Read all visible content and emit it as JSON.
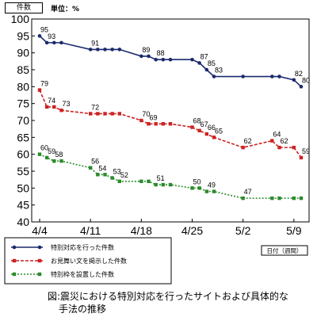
{
  "header": {
    "unit_box": "件数",
    "unit_text": "単位：%"
  },
  "chart_data": {
    "type": "line",
    "ylim": [
      40,
      100
    ],
    "yticks": [
      40,
      45,
      50,
      55,
      60,
      65,
      70,
      75,
      80,
      85,
      90,
      95,
      100
    ],
    "xticks": [
      {
        "label": "4/4",
        "day": 0
      },
      {
        "label": "4/11",
        "day": 7
      },
      {
        "label": "4/18",
        "day": 14
      },
      {
        "label": "4/25",
        "day": 21
      },
      {
        "label": "5/2",
        "day": 28
      },
      {
        "label": "5/9",
        "day": 35
      }
    ],
    "xlim_day": [
      0,
      37
    ],
    "x_axis_note": "日付（週間）",
    "series": [
      {
        "name": "特別対応を行った件数",
        "color": "#1a2a6c",
        "style": "solid",
        "marker": "circle",
        "points": [
          {
            "day": 0,
            "value": 95,
            "label": "95"
          },
          {
            "day": 1,
            "value": 93,
            "label": "93"
          },
          {
            "day": 2,
            "value": 93
          },
          {
            "day": 3,
            "value": 93
          },
          {
            "day": 7,
            "value": 91,
            "label": "91"
          },
          {
            "day": 8,
            "value": 91
          },
          {
            "day": 9,
            "value": 91
          },
          {
            "day": 10,
            "value": 91
          },
          {
            "day": 11,
            "value": 91
          },
          {
            "day": 14,
            "value": 89,
            "label": "89"
          },
          {
            "day": 15,
            "value": 89
          },
          {
            "day": 16,
            "value": 88,
            "label": "88"
          },
          {
            "day": 17,
            "value": 88
          },
          {
            "day": 18,
            "value": 88
          },
          {
            "day": 21,
            "value": 88
          },
          {
            "day": 22,
            "value": 87,
            "label": "87"
          },
          {
            "day": 23,
            "value": 85,
            "label": "85"
          },
          {
            "day": 24,
            "value": 83,
            "label": "83"
          },
          {
            "day": 28,
            "value": 83
          },
          {
            "day": 32,
            "value": 83
          },
          {
            "day": 33,
            "value": 83
          },
          {
            "day": 35,
            "value": 82,
            "label": "82"
          },
          {
            "day": 36,
            "value": 80,
            "label": "80"
          }
        ]
      },
      {
        "name": "お見舞い文を掲示した件数",
        "color": "#cc2222",
        "style": "dashed",
        "marker": "square",
        "points": [
          {
            "day": 0,
            "value": 79,
            "label": "79"
          },
          {
            "day": 1,
            "value": 74,
            "label": "74"
          },
          {
            "day": 2,
            "value": 74
          },
          {
            "day": 3,
            "value": 73,
            "label": "73"
          },
          {
            "day": 7,
            "value": 72,
            "label": "72"
          },
          {
            "day": 8,
            "value": 72
          },
          {
            "day": 9,
            "value": 72
          },
          {
            "day": 10,
            "value": 72
          },
          {
            "day": 11,
            "value": 72
          },
          {
            "day": 14,
            "value": 70,
            "label": "70"
          },
          {
            "day": 15,
            "value": 69,
            "label": "69"
          },
          {
            "day": 16,
            "value": 69
          },
          {
            "day": 17,
            "value": 69
          },
          {
            "day": 18,
            "value": 69
          },
          {
            "day": 21,
            "value": 68,
            "label": "68"
          },
          {
            "day": 22,
            "value": 67,
            "label": "67"
          },
          {
            "day": 23,
            "value": 66,
            "label": "66"
          },
          {
            "day": 24,
            "value": 65,
            "label": "65"
          },
          {
            "day": 28,
            "value": 62,
            "label": "62"
          },
          {
            "day": 32,
            "value": 64,
            "label": "64"
          },
          {
            "day": 33,
            "value": 62,
            "label": "62"
          },
          {
            "day": 35,
            "value": 62
          },
          {
            "day": 36,
            "value": 59,
            "label": "59"
          }
        ]
      },
      {
        "name": "特別枠を設置した件数",
        "color": "#2a8a2a",
        "style": "dotted",
        "marker": "square",
        "points": [
          {
            "day": 0,
            "value": 60,
            "label": "60"
          },
          {
            "day": 1,
            "value": 59,
            "label": "59"
          },
          {
            "day": 2,
            "value": 58,
            "label": "58"
          },
          {
            "day": 3,
            "value": 58
          },
          {
            "day": 7,
            "value": 56,
            "label": "56"
          },
          {
            "day": 8,
            "value": 54,
            "label": "54"
          },
          {
            "day": 9,
            "value": 54
          },
          {
            "day": 10,
            "value": 53,
            "label": "53"
          },
          {
            "day": 11,
            "value": 52,
            "label": "52"
          },
          {
            "day": 14,
            "value": 52
          },
          {
            "day": 15,
            "value": 52
          },
          {
            "day": 16,
            "value": 51,
            "label": "51"
          },
          {
            "day": 17,
            "value": 51
          },
          {
            "day": 18,
            "value": 51
          },
          {
            "day": 21,
            "value": 50,
            "label": "50"
          },
          {
            "day": 22,
            "value": 50
          },
          {
            "day": 23,
            "value": 49,
            "label": "49"
          },
          {
            "day": 24,
            "value": 49
          },
          {
            "day": 28,
            "value": 47,
            "label": "47"
          },
          {
            "day": 32,
            "value": 47
          },
          {
            "day": 33,
            "value": 47
          },
          {
            "day": 35,
            "value": 47
          },
          {
            "day": 36,
            "value": 47
          }
        ]
      }
    ],
    "legend_placement": "bottom-left"
  },
  "caption": {
    "line1": "図:震災における特別対応を行ったサイトおよび具体的な",
    "line2": "手法の推移"
  }
}
